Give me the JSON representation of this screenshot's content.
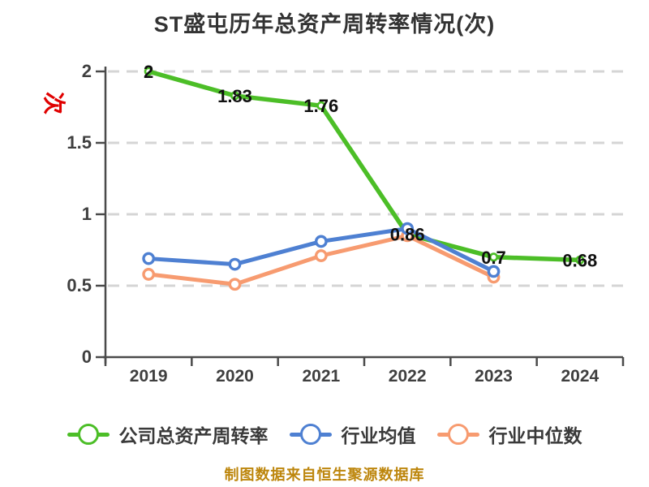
{
  "chart_data": {
    "type": "line",
    "title": "ST盛屯历年总资产周转率情况(次)",
    "ylabel": "次",
    "caption": "制图数据来自恒生聚源数据库",
    "categories": [
      "2019",
      "2020",
      "2021",
      "2022",
      "2023",
      "2024"
    ],
    "ylim": [
      0,
      2
    ],
    "yticks": [
      "0",
      "0.5",
      "1",
      "1.5",
      "2"
    ],
    "grid": "horizontal-dashed",
    "legend_position": "bottom",
    "series": [
      {
        "name": "公司总资产周转率",
        "color": "#4cbe27",
        "marker": "circle-white",
        "values": [
          2,
          1.83,
          1.76,
          0.86,
          0.7,
          0.68
        ],
        "point_labels": [
          "2",
          "1.83",
          "1.76",
          "0.86",
          "0.7",
          "0.68"
        ]
      },
      {
        "name": "行业均值",
        "color": "#4e80d2",
        "marker": "circle-white",
        "values": [
          0.69,
          0.65,
          0.81,
          0.9,
          0.6,
          null
        ],
        "point_labels": null
      },
      {
        "name": "行业中位数",
        "color": "#f79b70",
        "marker": "circle-white",
        "values": [
          0.58,
          0.51,
          0.71,
          0.85,
          0.56,
          null
        ],
        "point_labels": null
      }
    ],
    "colors": {
      "background": "#ffffff",
      "title": "#333333",
      "axis": "#4a4a4a",
      "tick_text": "#3f3f3f",
      "grid": "#d5d5d5",
      "point_label": "#101010",
      "legend_text": "#3a3a3a",
      "caption": "#bd860d",
      "ylabel": "#e00000"
    }
  }
}
